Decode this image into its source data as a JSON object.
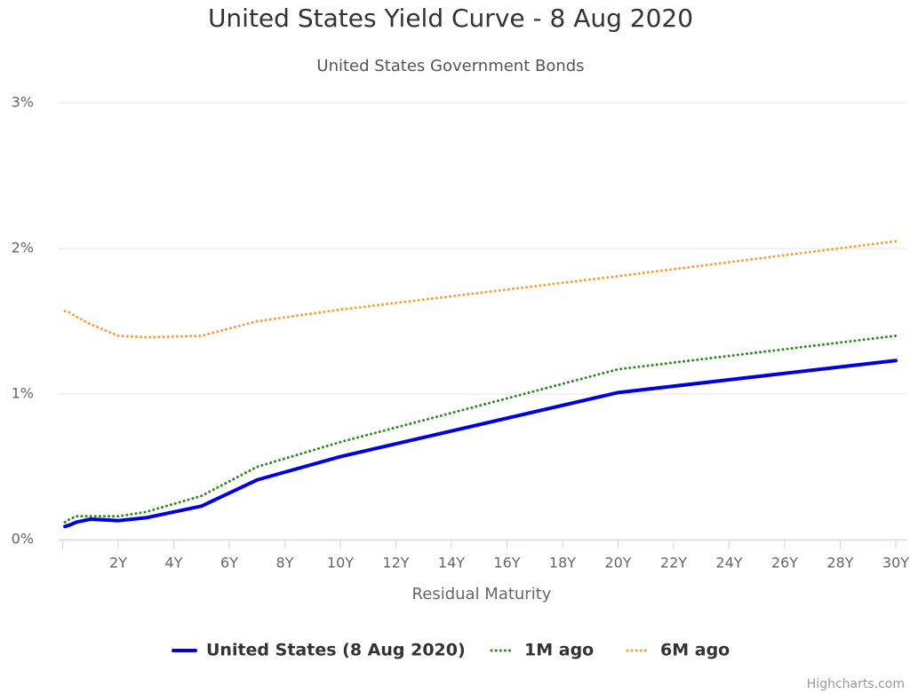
{
  "chart_data": {
    "type": "line",
    "title": "United States Yield Curve - 8 Aug 2020",
    "subtitle": "United States Government Bonds",
    "x_label": "Residual Maturity",
    "credits": "Highcharts.com",
    "x": [
      0.083,
      0.25,
      0.5,
      1,
      2,
      3,
      5,
      7,
      10,
      20,
      30
    ],
    "series": [
      {
        "name": "United States (8 Aug 2020)",
        "color": "#0000dd",
        "style": "solid",
        "values": [
          0.09,
          0.1,
          0.12,
          0.14,
          0.13,
          0.15,
          0.23,
          0.41,
          0.57,
          1.01,
          1.23
        ]
      },
      {
        "name": "1M ago",
        "color": "#2e8b22",
        "style": "dotted",
        "values": [
          0.12,
          0.14,
          0.16,
          0.16,
          0.16,
          0.19,
          0.3,
          0.5,
          0.67,
          1.17,
          1.4
        ]
      },
      {
        "name": "6M ago",
        "color": "#f5a03c",
        "style": "dotted",
        "values": [
          1.57,
          1.56,
          1.53,
          1.48,
          1.4,
          1.39,
          1.4,
          1.5,
          1.58,
          1.81,
          2.05
        ]
      }
    ],
    "xlim": [
      0,
      30
    ],
    "xticks": [
      {
        "value": 2,
        "label": "2Y"
      },
      {
        "value": 4,
        "label": "4Y"
      },
      {
        "value": 6,
        "label": "6Y"
      },
      {
        "value": 8,
        "label": "8Y"
      },
      {
        "value": 10,
        "label": "10Y"
      },
      {
        "value": 12,
        "label": "12Y"
      },
      {
        "value": 14,
        "label": "14Y"
      },
      {
        "value": 16,
        "label": "16Y"
      },
      {
        "value": 18,
        "label": "18Y"
      },
      {
        "value": 20,
        "label": "20Y"
      },
      {
        "value": 22,
        "label": "22Y"
      },
      {
        "value": 24,
        "label": "24Y"
      },
      {
        "value": 26,
        "label": "26Y"
      },
      {
        "value": 28,
        "label": "28Y"
      },
      {
        "value": 30,
        "label": "30Y"
      }
    ],
    "ylim": [
      0,
      3
    ],
    "yticks": [
      {
        "value": 0,
        "label": "0%"
      },
      {
        "value": 1,
        "label": "1%"
      },
      {
        "value": 2,
        "label": "2%"
      },
      {
        "value": 3,
        "label": "3%"
      }
    ],
    "grid": true,
    "legend": "bottom"
  }
}
